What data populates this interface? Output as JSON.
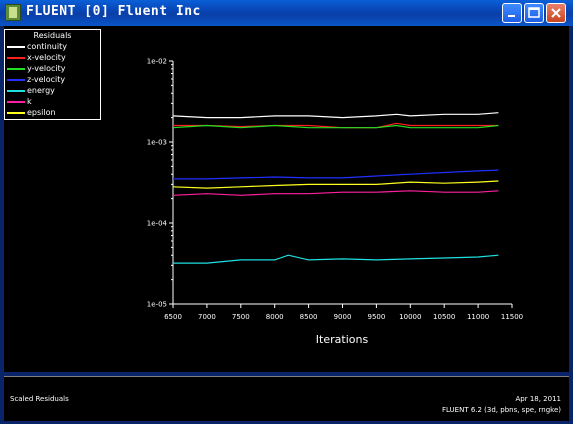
{
  "window": {
    "title": "FLUENT [0] Fluent Inc",
    "minimize_label": "_",
    "maximize_label": "□",
    "close_label": "✕"
  },
  "legend": {
    "title": "Residuals",
    "items": [
      {
        "label": "continuity",
        "color": "#ffffff"
      },
      {
        "label": "x-velocity",
        "color": "#ff2020"
      },
      {
        "label": "y-velocity",
        "color": "#20e020"
      },
      {
        "label": "z-velocity",
        "color": "#2030ff"
      },
      {
        "label": "energy",
        "color": "#20e0e0"
      },
      {
        "label": "k",
        "color": "#ff20a0"
      },
      {
        "label": "epsilon",
        "color": "#ffff20"
      }
    ]
  },
  "chart_data": {
    "type": "line",
    "xlabel": "Iterations",
    "ylabel": "",
    "y_scale": "log",
    "xlim": [
      6500,
      11500
    ],
    "ylim": [
      1e-05,
      0.01
    ],
    "x_ticks": [
      "6500",
      "7000",
      "7500",
      "8000",
      "8500",
      "9000",
      "9500",
      "10000",
      "10500",
      "11000",
      "11500"
    ],
    "y_ticks": [
      "1e-05",
      "1e-04",
      "1e-03",
      "1e-02"
    ],
    "series": [
      {
        "name": "continuity",
        "color": "#ffffff",
        "x": [
          6500,
          7000,
          7500,
          8000,
          8500,
          9000,
          9500,
          9800,
          10000,
          10500,
          11000,
          11300
        ],
        "y": [
          0.0021,
          0.002,
          0.002,
          0.0021,
          0.0021,
          0.002,
          0.0021,
          0.0022,
          0.0021,
          0.0022,
          0.0022,
          0.0023
        ]
      },
      {
        "name": "x-velocity",
        "color": "#ff2020",
        "x": [
          6500,
          7000,
          7500,
          8000,
          8500,
          9000,
          9500,
          9800,
          10000,
          10500,
          11000,
          11300
        ],
        "y": [
          0.0016,
          0.0016,
          0.00155,
          0.0016,
          0.0016,
          0.0015,
          0.0015,
          0.0017,
          0.0016,
          0.0016,
          0.0016,
          0.0016
        ]
      },
      {
        "name": "y-velocity",
        "color": "#20e020",
        "x": [
          6500,
          7000,
          7500,
          8000,
          8500,
          9000,
          9500,
          9800,
          10000,
          10500,
          11000,
          11300
        ],
        "y": [
          0.0015,
          0.0016,
          0.0015,
          0.0016,
          0.0015,
          0.0015,
          0.0015,
          0.0016,
          0.0015,
          0.0015,
          0.0015,
          0.0016
        ]
      },
      {
        "name": "z-velocity",
        "color": "#2030ff",
        "x": [
          6500,
          7000,
          7500,
          8000,
          8500,
          9000,
          9500,
          10000,
          10500,
          11000,
          11300
        ],
        "y": [
          0.00035,
          0.00035,
          0.00036,
          0.00037,
          0.00036,
          0.00036,
          0.00038,
          0.0004,
          0.00042,
          0.00044,
          0.00045
        ]
      },
      {
        "name": "energy",
        "color": "#20e0e0",
        "x": [
          6500,
          7000,
          7500,
          8000,
          8200,
          8500,
          9000,
          9500,
          10000,
          10500,
          11000,
          11300
        ],
        "y": [
          3.2e-05,
          3.2e-05,
          3.5e-05,
          3.5e-05,
          4e-05,
          3.5e-05,
          3.6e-05,
          3.5e-05,
          3.6e-05,
          3.7e-05,
          3.8e-05,
          4e-05
        ]
      },
      {
        "name": "k",
        "color": "#ff20a0",
        "x": [
          6500,
          7000,
          7500,
          8000,
          8500,
          9000,
          9500,
          10000,
          10500,
          11000,
          11300
        ],
        "y": [
          0.00022,
          0.00023,
          0.00022,
          0.00023,
          0.00023,
          0.00024,
          0.00024,
          0.00025,
          0.00024,
          0.00024,
          0.00025
        ]
      },
      {
        "name": "epsilon",
        "color": "#ffff20",
        "x": [
          6500,
          7000,
          7500,
          8000,
          8500,
          9000,
          9500,
          10000,
          10500,
          11000,
          11300
        ],
        "y": [
          0.00028,
          0.00027,
          0.00028,
          0.00029,
          0.0003,
          0.0003,
          0.0003,
          0.00032,
          0.00031,
          0.00032,
          0.00033
        ]
      }
    ]
  },
  "footer": {
    "caption": "Scaled Residuals",
    "date": "Apr 18, 2011",
    "version": "FLUENT 6.2 (3d, pbns, spe, rngke)"
  }
}
